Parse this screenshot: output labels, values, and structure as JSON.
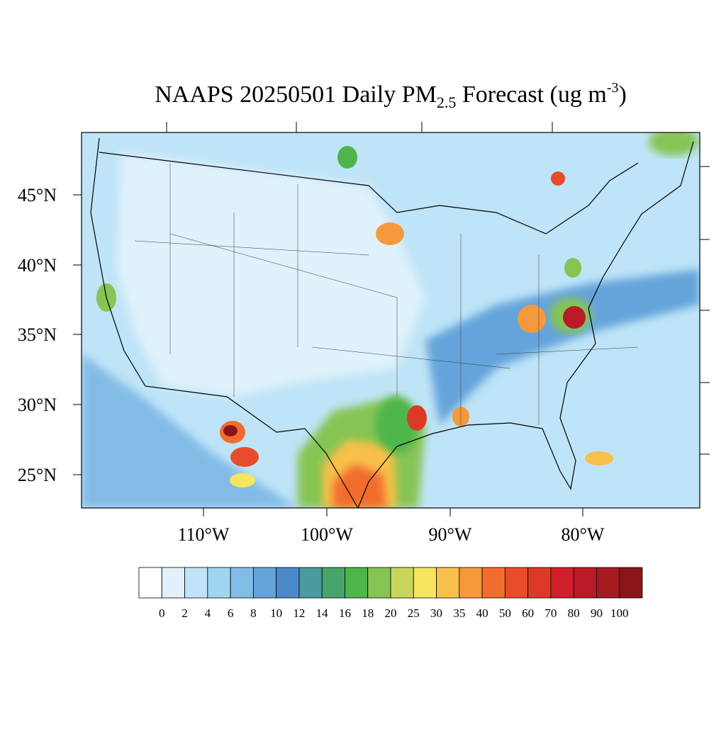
{
  "title": {
    "main": "NAAPS 20250501 Daily PM",
    "sub": "2.5",
    "rest": " Forecast (ug m",
    "sup": "-3",
    "end": ")"
  },
  "lat_labels": [
    "45°N",
    "40°N",
    "35°N",
    "30°N",
    "25°N"
  ],
  "lon_labels": [
    "110°W",
    "100°W",
    "90°W",
    "80°W"
  ],
  "colorbar": {
    "labels": [
      0,
      2,
      4,
      6,
      8,
      10,
      12,
      14,
      16,
      18,
      20,
      25,
      30,
      35,
      40,
      50,
      60,
      70,
      80,
      90,
      100
    ],
    "colors": [
      "#ffffff",
      "#dff1fb",
      "#bfe4f7",
      "#9fd4f2",
      "#82bce6",
      "#65a4da",
      "#4a8ac8",
      "#4a9a9e",
      "#47a46c",
      "#4db54a",
      "#86c453",
      "#c6d65b",
      "#f6e55d",
      "#f8c04a",
      "#f5993c",
      "#f26c2e",
      "#e84c2b",
      "#dc3a27",
      "#d11f2b",
      "#b81b26",
      "#a51b22",
      "#8b1619"
    ]
  }
}
